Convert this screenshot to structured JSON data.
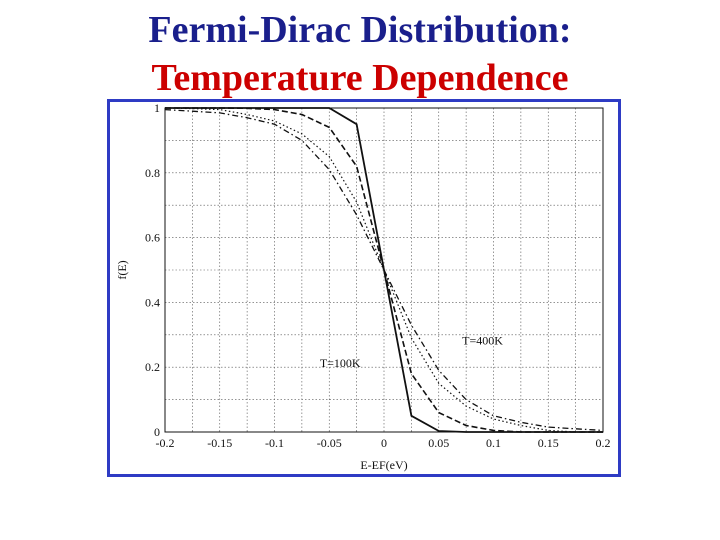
{
  "slide": {
    "title_line1": "Fermi-Dirac Distribution:",
    "title_line2": "Temperature Dependence"
  },
  "colors": {
    "title_line1": "#1a1f8c",
    "title_line2": "#cc0000",
    "frame_border": "#2e3bc4"
  },
  "chart_data": {
    "type": "line",
    "title": "",
    "xlabel": "E-EF(eV)",
    "ylabel": "f(E)",
    "xlim": [
      -0.2,
      0.2
    ],
    "ylim": [
      0,
      1
    ],
    "grid": true,
    "x_ticks": [
      "-0.2",
      "-0.15",
      "-0.1",
      "-0.05",
      "0",
      "0.05",
      "0.1",
      "0.15",
      "0.2"
    ],
    "y_ticks": [
      "0",
      "0.2",
      "0.4",
      "0.6",
      "0.8",
      "1"
    ],
    "x": [
      -0.2,
      -0.175,
      -0.15,
      -0.125,
      -0.1,
      -0.075,
      -0.05,
      -0.025,
      0,
      0.025,
      0.05,
      0.075,
      0.1,
      0.125,
      0.15,
      0.175,
      0.2
    ],
    "series": [
      {
        "name": "T=100K",
        "style": "solid",
        "values": [
          1.0,
          1.0,
          1.0,
          1.0,
          1.0,
          1.0,
          1.0,
          0.95,
          0.5,
          0.05,
          0.003,
          0.0,
          0.0,
          0.0,
          0.0,
          0.0,
          0.0
        ]
      },
      {
        "style": "dashed",
        "values": [
          1.0,
          1.0,
          1.0,
          0.999,
          0.995,
          0.98,
          0.94,
          0.82,
          0.5,
          0.18,
          0.06,
          0.02,
          0.005,
          0.0,
          0.0,
          0.0,
          0.0
        ]
      },
      {
        "style": "dotted",
        "values": [
          1.0,
          0.998,
          0.995,
          0.98,
          0.96,
          0.92,
          0.85,
          0.71,
          0.5,
          0.29,
          0.15,
          0.08,
          0.04,
          0.02,
          0.005,
          0.0,
          0.0
        ]
      },
      {
        "name": "T=400K",
        "style": "dashdot",
        "values": [
          0.995,
          0.99,
          0.985,
          0.97,
          0.95,
          0.9,
          0.81,
          0.67,
          0.5,
          0.33,
          0.19,
          0.1,
          0.05,
          0.03,
          0.015,
          0.01,
          0.005
        ]
      }
    ],
    "annotations": [
      {
        "text": "T=400K",
        "x": 0.09,
        "y": 0.27
      },
      {
        "text": "T=100K",
        "x": -0.04,
        "y": 0.2
      }
    ]
  }
}
